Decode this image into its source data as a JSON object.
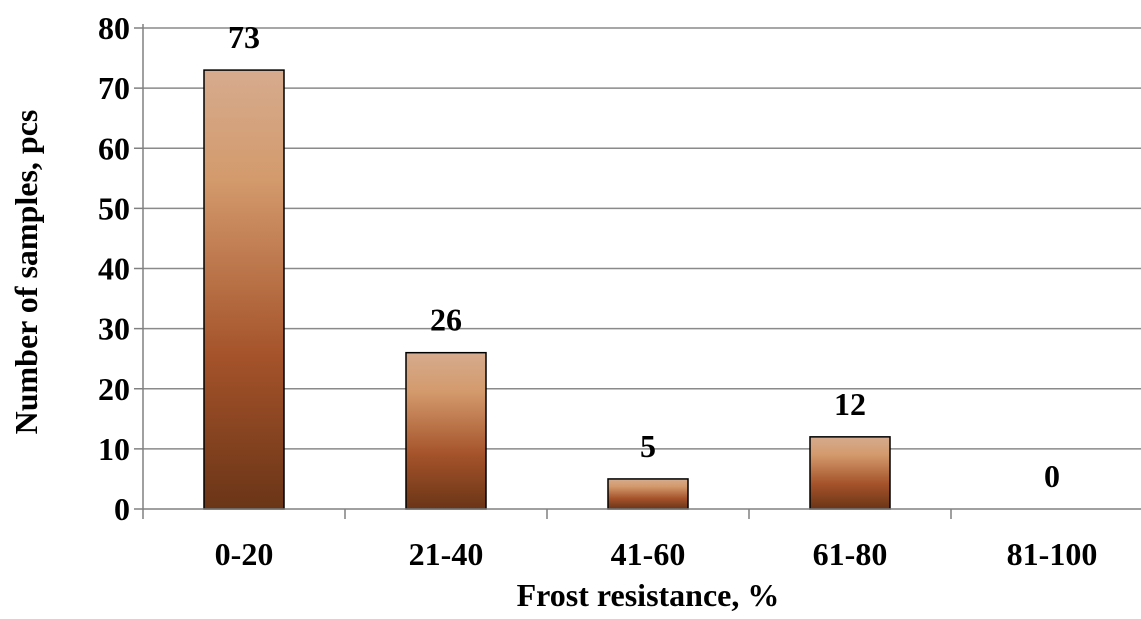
{
  "chart_data": {
    "type": "bar",
    "categories": [
      "0-20",
      "21-40",
      "41-60",
      "61-80",
      "81-100"
    ],
    "values": [
      73,
      26,
      5,
      12,
      0
    ],
    "data_labels": [
      "73",
      "26",
      "5",
      "12",
      "0"
    ],
    "yticks": [
      "0",
      "10",
      "20",
      "30",
      "40",
      "50",
      "60",
      "70",
      "80"
    ],
    "title": "",
    "xlabel": "Frost resistance, %",
    "ylabel": "Number of samples, pcs",
    "ylim": [
      0,
      80
    ],
    "grid": true,
    "legend": "none",
    "colors": {
      "bar_top": "#d6ab8e",
      "bar_mid": "#a5532a",
      "bar_bottom": "#6a3517",
      "bar_outline": "#000000",
      "grid": "#8a8a8a",
      "axis": "#808080"
    }
  }
}
